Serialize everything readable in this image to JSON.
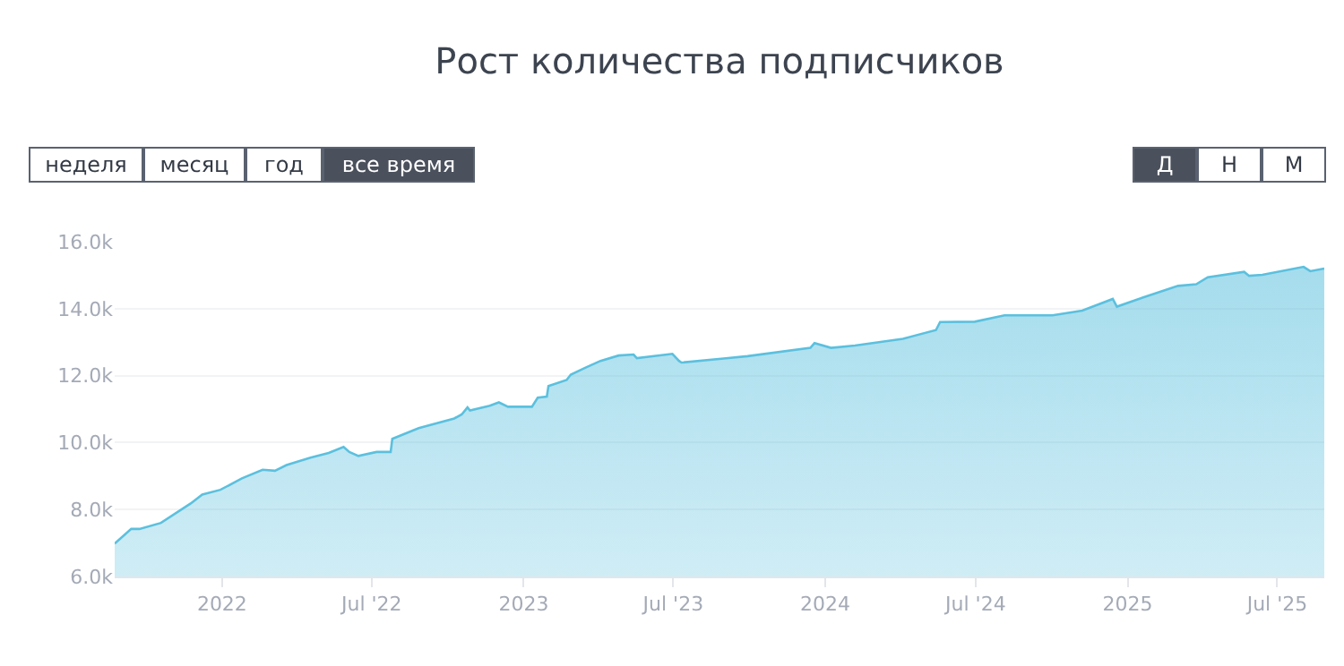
{
  "chart_data": {
    "type": "area",
    "title": "Рост количества подписчиков",
    "annotations": [
      "неделя",
      "месяц",
      "год",
      "все время",
      "Д",
      "Н",
      "М"
    ],
    "x": [
      "2021-08-24",
      "2021-09-13",
      "2021-09-23",
      "2021-10-19",
      "2021-11-24",
      "2021-12-08",
      "2021-12-30",
      "2022-01-25",
      "2022-02-19",
      "2022-03-06",
      "2022-03-20",
      "2022-04-18",
      "2022-05-10",
      "2022-05-28",
      "2022-06-04",
      "2022-06-15",
      "2022-07-07",
      "2022-07-24",
      "2022-07-26",
      "2022-08-27",
      "2022-10-09",
      "2022-10-18",
      "2022-10-25",
      "2022-10-28",
      "2022-11-21",
      "2022-12-02",
      "2022-12-13",
      "2023-01-11",
      "2023-01-18",
      "2023-01-29",
      "2023-01-31",
      "2023-02-22",
      "2023-02-27",
      "2023-03-17",
      "2023-04-04",
      "2023-04-26",
      "2023-05-14",
      "2023-05-18",
      "2023-06-30",
      "2023-07-08",
      "2023-07-11",
      "2023-08-31",
      "2023-09-29",
      "2023-12-14",
      "2023-12-19",
      "2024-01-08",
      "2024-02-06",
      "2024-04-04",
      "2024-05-14",
      "2024-05-19",
      "2024-06-30",
      "2024-08-05",
      "2024-10-02",
      "2024-11-07",
      "2024-12-14",
      "2024-12-19",
      "2025-01-19",
      "2025-03-03",
      "2025-03-25",
      "2025-04-08",
      "2025-05-22",
      "2025-05-28",
      "2025-06-13",
      "2025-08-02",
      "2025-08-10",
      "2025-08-27"
    ],
    "series": [
      {
        "color": "#5bc0de",
        "values": [
          6980,
          7420,
          7420,
          7600,
          8180,
          8450,
          8590,
          8930,
          9190,
          9160,
          9330,
          9550,
          9690,
          9870,
          9720,
          9600,
          9720,
          9720,
          10110,
          10430,
          10720,
          10840,
          11050,
          10960,
          11100,
          11200,
          11070,
          11070,
          11340,
          11370,
          11690,
          11870,
          12030,
          12240,
          12440,
          12600,
          12630,
          12520,
          12650,
          12440,
          12390,
          12510,
          12580,
          12830,
          12970,
          12830,
          12900,
          13100,
          13360,
          13600,
          13610,
          13800,
          13800,
          13940,
          14290,
          14060,
          14330,
          14680,
          14730,
          14940,
          15100,
          14980,
          15010,
          15250,
          15120,
          15200
        ]
      }
    ],
    "xlim": [
      "2021-08-24",
      "2025-08-27"
    ],
    "xticks": [
      {
        "value": "2022-01-01",
        "label": "2022"
      },
      {
        "value": "2022-07-01",
        "label": "Jul '22"
      },
      {
        "value": "2023-01-01",
        "label": "2023"
      },
      {
        "value": "2023-07-01",
        "label": "Jul '23"
      },
      {
        "value": "2024-01-01",
        "label": "2024"
      },
      {
        "value": "2024-07-01",
        "label": "Jul '24"
      },
      {
        "value": "2025-01-01",
        "label": "2025"
      },
      {
        "value": "2025-07-01",
        "label": "Jul '25"
      }
    ],
    "ylim": [
      6000,
      16000
    ],
    "yticks": [
      {
        "value": 6000,
        "label": "6.0k"
      },
      {
        "value": 8000,
        "label": "8.0k"
      },
      {
        "value": 10000,
        "label": "10.0k"
      },
      {
        "value": 12000,
        "label": "12.0k"
      },
      {
        "value": 14000,
        "label": "14.0k"
      },
      {
        "value": 16000,
        "label": "16.0k"
      }
    ],
    "grid": "y",
    "legend": false,
    "marker": "none",
    "line_style": "solid"
  }
}
